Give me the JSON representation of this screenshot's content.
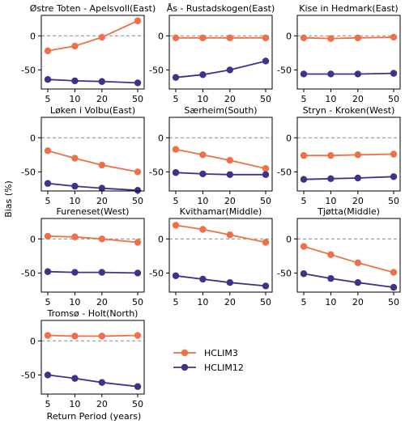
{
  "chart_data": {
    "type": "line",
    "ylabel": "Bias (%)",
    "xlabel": "Return Period (years)",
    "x_ticks": [
      "5",
      "10",
      "20",
      "50"
    ],
    "y_ticks": [
      "0",
      "-50"
    ],
    "ylim": [
      -78,
      30
    ],
    "reference_line": 0,
    "legend": {
      "placement": "lower-center",
      "entries": [
        "HCLIM3",
        "HCLIM12"
      ]
    },
    "colors": {
      "HCLIM3": "#EE7048",
      "HCLIM12": "#3F3387",
      "zero_line": "#888888"
    },
    "categories": [
      5,
      10,
      20,
      50
    ],
    "panels": [
      {
        "title": "Østre Toten - Apelsvoll(East)",
        "series": [
          {
            "name": "HCLIM3",
            "values": [
              -22,
              -15,
              -2,
              22
            ]
          },
          {
            "name": "HCLIM12",
            "values": [
              -64,
              -66,
              -67,
              -69
            ]
          }
        ]
      },
      {
        "title": "Ås - Rustadskogen(East)",
        "series": [
          {
            "name": "HCLIM3",
            "values": [
              -3,
              -3,
              -3,
              -3
            ]
          },
          {
            "name": "HCLIM12",
            "values": [
              -61,
              -57,
              -50,
              -37
            ]
          }
        ]
      },
      {
        "title": "Kise in Hedmark(East)",
        "series": [
          {
            "name": "HCLIM3",
            "values": [
              -3,
              -4,
              -3,
              -2
            ]
          },
          {
            "name": "HCLIM12",
            "values": [
              -56,
              -56,
              -56,
              -55
            ]
          }
        ]
      },
      {
        "title": "Løken i Volbu(East)",
        "series": [
          {
            "name": "HCLIM3",
            "values": [
              -19,
              -30,
              -40,
              -50
            ]
          },
          {
            "name": "HCLIM12",
            "values": [
              -67,
              -71,
              -74,
              -77
            ]
          }
        ]
      },
      {
        "title": "Særheim(South)",
        "series": [
          {
            "name": "HCLIM3",
            "values": [
              -17,
              -25,
              -33,
              -45
            ]
          },
          {
            "name": "HCLIM12",
            "values": [
              -51,
              -53,
              -54,
              -54
            ]
          }
        ]
      },
      {
        "title": "Stryn - Kroken(West)",
        "series": [
          {
            "name": "HCLIM3",
            "values": [
              -26,
              -26,
              -25,
              -24
            ]
          },
          {
            "name": "HCLIM12",
            "values": [
              -61,
              -60,
              -59,
              -57
            ]
          }
        ]
      },
      {
        "title": "Fureneset(West)",
        "series": [
          {
            "name": "HCLIM3",
            "values": [
              4,
              3,
              0,
              -5
            ]
          },
          {
            "name": "HCLIM12",
            "values": [
              -48,
              -49,
              -49,
              -50
            ]
          }
        ]
      },
      {
        "title": "Kvithamar(Middle)",
        "series": [
          {
            "name": "HCLIM3",
            "values": [
              20,
              14,
              6,
              -5
            ]
          },
          {
            "name": "HCLIM12",
            "values": [
              -54,
              -59,
              -64,
              -69
            ]
          }
        ]
      },
      {
        "title": "Tjøtta(Middle)",
        "series": [
          {
            "name": "HCLIM3",
            "values": [
              -11,
              -23,
              -35,
              -49
            ]
          },
          {
            "name": "HCLIM12",
            "values": [
              -51,
              -58,
              -64,
              -71
            ]
          }
        ]
      },
      {
        "title": "Tromsø - Holt(North)",
        "series": [
          {
            "name": "HCLIM3",
            "values": [
              8,
              7,
              7,
              8
            ]
          },
          {
            "name": "HCLIM12",
            "values": [
              -50,
              -55,
              -61,
              -67
            ]
          }
        ]
      }
    ]
  }
}
